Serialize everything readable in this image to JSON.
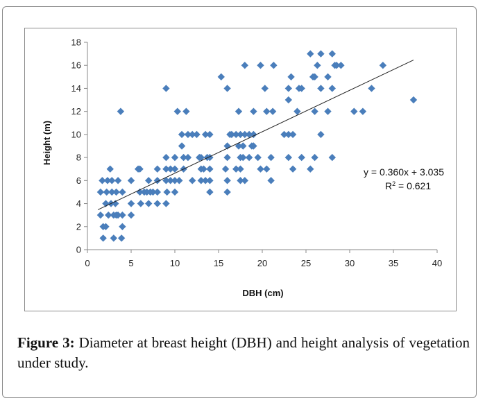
{
  "caption": {
    "label": "Figure 3:",
    "text": "Diameter at breast height (DBH) and height analysis of vegetation under study."
  },
  "chart_data": {
    "type": "scatter",
    "xlabel": "DBH (cm)",
    "ylabel": "Height (m)",
    "xlim": [
      0,
      40
    ],
    "ylim": [
      0,
      18
    ],
    "xticks": [
      0,
      5,
      10,
      15,
      20,
      25,
      30,
      35,
      40
    ],
    "yticks": [
      0,
      2,
      4,
      6,
      8,
      10,
      12,
      14,
      16,
      18
    ],
    "grid": false,
    "marker": "diamond",
    "marker_color": "#4a7ebb",
    "trendline": {
      "slope": 0.36,
      "intercept": 3.035,
      "x_range": [
        1.2,
        37.3
      ],
      "equation": "y = 0.360x + 3.035",
      "r2_label": "R",
      "r2_sup": "2",
      "r2_value": " = 0.621"
    },
    "points": [
      [
        1.5,
        5
      ],
      [
        1.5,
        3
      ],
      [
        1.7,
        6
      ],
      [
        1.8,
        1
      ],
      [
        1.8,
        2
      ],
      [
        2.1,
        4
      ],
      [
        2.1,
        2
      ],
      [
        2.2,
        5
      ],
      [
        2.3,
        6
      ],
      [
        2.4,
        3
      ],
      [
        2.6,
        7
      ],
      [
        2.7,
        4
      ],
      [
        2.8,
        5
      ],
      [
        2.8,
        6
      ],
      [
        3.0,
        3
      ],
      [
        3.0,
        1
      ],
      [
        3.2,
        4
      ],
      [
        3.3,
        3
      ],
      [
        3.3,
        5
      ],
      [
        3.5,
        6
      ],
      [
        3.5,
        3
      ],
      [
        3.8,
        12
      ],
      [
        3.9,
        1
      ],
      [
        4.0,
        5
      ],
      [
        4.0,
        3
      ],
      [
        4.0,
        2
      ],
      [
        5.0,
        3
      ],
      [
        5.0,
        4
      ],
      [
        5.0,
        6
      ],
      [
        5.8,
        7
      ],
      [
        6.0,
        5
      ],
      [
        6.0,
        7
      ],
      [
        6.1,
        4
      ],
      [
        6.5,
        5
      ],
      [
        6.8,
        5
      ],
      [
        7.0,
        6
      ],
      [
        7.0,
        4
      ],
      [
        7.2,
        5
      ],
      [
        7.5,
        5
      ],
      [
        8.0,
        7
      ],
      [
        8.0,
        6
      ],
      [
        8.0,
        4
      ],
      [
        8.0,
        5
      ],
      [
        9.0,
        14
      ],
      [
        9.0,
        8
      ],
      [
        9.0,
        7
      ],
      [
        9.0,
        6
      ],
      [
        9.0,
        4
      ],
      [
        9.1,
        5
      ],
      [
        9.5,
        7
      ],
      [
        9.5,
        6
      ],
      [
        10.0,
        8
      ],
      [
        10.0,
        7
      ],
      [
        10.0,
        6
      ],
      [
        10.0,
        5
      ],
      [
        10.3,
        12
      ],
      [
        10.5,
        6
      ],
      [
        10.8,
        9
      ],
      [
        10.8,
        10
      ],
      [
        11.0,
        7
      ],
      [
        11.0,
        8
      ],
      [
        11.3,
        12
      ],
      [
        11.5,
        10
      ],
      [
        11.5,
        8
      ],
      [
        12.0,
        10
      ],
      [
        12.0,
        6
      ],
      [
        12.5,
        10
      ],
      [
        12.8,
        8
      ],
      [
        13.0,
        7
      ],
      [
        13.0,
        6
      ],
      [
        13.0,
        8
      ],
      [
        13.3,
        7
      ],
      [
        13.5,
        10
      ],
      [
        13.5,
        6
      ],
      [
        13.7,
        8
      ],
      [
        14.0,
        10
      ],
      [
        14.0,
        8
      ],
      [
        14.0,
        7
      ],
      [
        14.0,
        6
      ],
      [
        14.0,
        5
      ],
      [
        15.3,
        15
      ],
      [
        15.8,
        7
      ],
      [
        16.0,
        14
      ],
      [
        16.0,
        9
      ],
      [
        16.0,
        8
      ],
      [
        16.0,
        6
      ],
      [
        16.0,
        5
      ],
      [
        16.3,
        10
      ],
      [
        16.5,
        10
      ],
      [
        17.0,
        10
      ],
      [
        17.0,
        7
      ],
      [
        17.3,
        12
      ],
      [
        17.3,
        9
      ],
      [
        17.5,
        10
      ],
      [
        17.5,
        8
      ],
      [
        17.5,
        7
      ],
      [
        17.5,
        6
      ],
      [
        17.8,
        9
      ],
      [
        17.8,
        8
      ],
      [
        18.0,
        16
      ],
      [
        18.0,
        10
      ],
      [
        18.0,
        6
      ],
      [
        18.5,
        10
      ],
      [
        18.5,
        8
      ],
      [
        18.8,
        9
      ],
      [
        19.0,
        12
      ],
      [
        19.0,
        10
      ],
      [
        19.0,
        9
      ],
      [
        19.5,
        8
      ],
      [
        19.8,
        16
      ],
      [
        19.8,
        7
      ],
      [
        20.3,
        14
      ],
      [
        20.5,
        12
      ],
      [
        20.5,
        7
      ],
      [
        21.0,
        8
      ],
      [
        21.0,
        6
      ],
      [
        21.2,
        12
      ],
      [
        21.3,
        16
      ],
      [
        22.5,
        10
      ],
      [
        23.0,
        14
      ],
      [
        23.0,
        13
      ],
      [
        23.0,
        10
      ],
      [
        23.0,
        8
      ],
      [
        23.3,
        15
      ],
      [
        23.5,
        10
      ],
      [
        23.5,
        7
      ],
      [
        24.0,
        12
      ],
      [
        24.2,
        14
      ],
      [
        24.5,
        14
      ],
      [
        24.5,
        8
      ],
      [
        25.5,
        17
      ],
      [
        25.5,
        7
      ],
      [
        25.8,
        15
      ],
      [
        26.0,
        15
      ],
      [
        26.0,
        12
      ],
      [
        26.0,
        8
      ],
      [
        26.3,
        16
      ],
      [
        26.7,
        17
      ],
      [
        26.7,
        14
      ],
      [
        26.7,
        10
      ],
      [
        27.5,
        15
      ],
      [
        27.5,
        12
      ],
      [
        28.0,
        17
      ],
      [
        28.0,
        14
      ],
      [
        28.0,
        8
      ],
      [
        28.3,
        16
      ],
      [
        28.5,
        16
      ],
      [
        29.0,
        16
      ],
      [
        30.5,
        12
      ],
      [
        31.5,
        12
      ],
      [
        32.5,
        14
      ],
      [
        33.8,
        16
      ],
      [
        37.3,
        13
      ]
    ]
  }
}
